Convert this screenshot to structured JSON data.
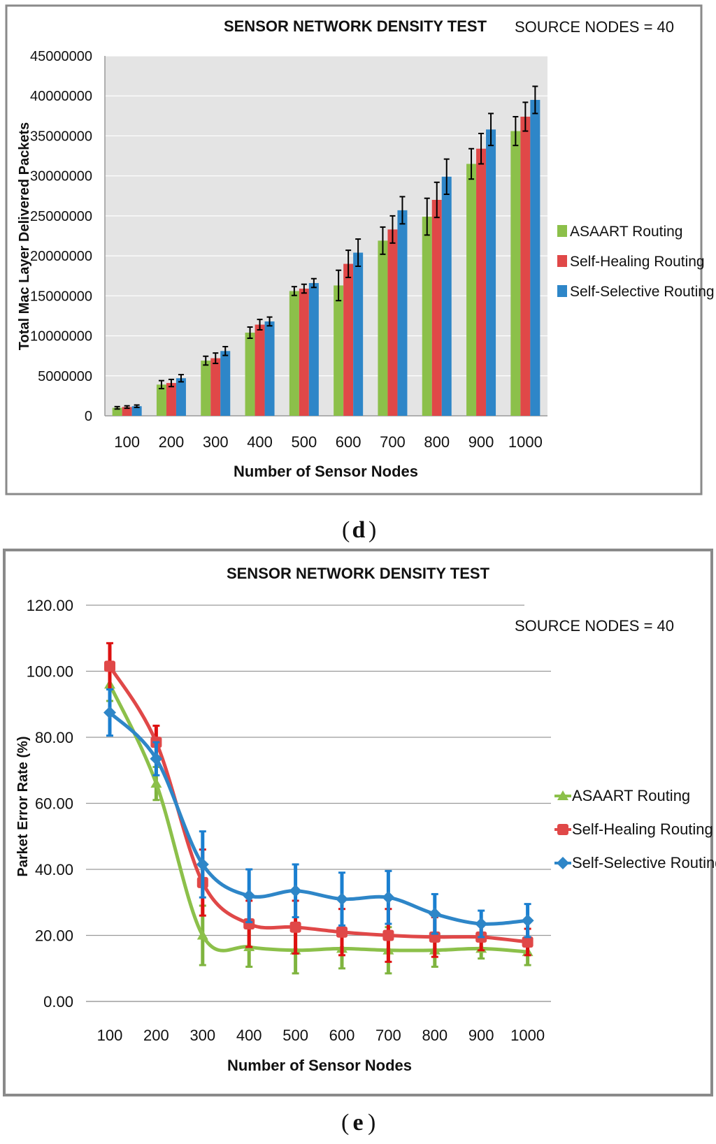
{
  "chart_data": [
    {
      "panel": "d",
      "type": "bar",
      "title": "SENSOR NETWORK DENSITY TEST",
      "annotation": "SOURCE NODES = 40",
      "xlabel": "Number of Sensor Nodes",
      "ylabel": "Total Mac Layer Delivered Packets",
      "ylim": [
        0,
        45000000
      ],
      "yticks": [
        "0",
        "5000000",
        "10000000",
        "15000000",
        "20000000",
        "25000000",
        "30000000",
        "35000000",
        "40000000",
        "45000000"
      ],
      "categories": [
        "100",
        "200",
        "300",
        "400",
        "500",
        "600",
        "700",
        "800",
        "900",
        "1000"
      ],
      "legend_position": "right",
      "series": [
        {
          "name": "ASAART Routing",
          "color": "#8CC04A",
          "values": [
            1000000,
            3900000,
            6900000,
            10400000,
            15600000,
            16300000,
            21900000,
            24900000,
            31500000,
            35600000
          ],
          "errors": [
            150000,
            500000,
            550000,
            700000,
            550000,
            1900000,
            1700000,
            2300000,
            1900000,
            1800000
          ]
        },
        {
          "name": "Self-Healing Routing",
          "color": "#E04848",
          "values": [
            1100000,
            4100000,
            7200000,
            11400000,
            15900000,
            19000000,
            23300000,
            27000000,
            33400000,
            37400000
          ],
          "errors": [
            150000,
            450000,
            650000,
            650000,
            550000,
            1700000,
            1700000,
            2200000,
            1900000,
            1800000
          ]
        },
        {
          "name": "Self-Selective Routing",
          "color": "#2E86C8",
          "values": [
            1200000,
            4700000,
            8100000,
            11800000,
            16600000,
            20400000,
            25700000,
            29900000,
            35800000,
            39500000
          ],
          "errors": [
            150000,
            450000,
            550000,
            550000,
            550000,
            1700000,
            1700000,
            2200000,
            2000000,
            1700000
          ]
        }
      ]
    },
    {
      "panel": "e",
      "type": "line",
      "title": "SENSOR NETWORK DENSITY TEST",
      "annotation": "SOURCE NODES = 40",
      "xlabel": "Number  of Sensor Nodes",
      "ylabel": "Parket Error Rate (%)",
      "ylim": [
        0,
        120
      ],
      "yticks": [
        "0.00",
        "20.00",
        "40.00",
        "60.00",
        "80.00",
        "100.00",
        "120.00"
      ],
      "categories": [
        "100",
        "200",
        "300",
        "400",
        "500",
        "600",
        "700",
        "800",
        "900",
        "1000"
      ],
      "legend_position": "right",
      "series": [
        {
          "name": "ASAART Routing",
          "color": "#8CC04A",
          "marker": "triangle",
          "values": [
            96,
            66,
            20,
            16.5,
            15.5,
            16,
            15.5,
            15.5,
            16,
            15
          ],
          "errors": [
            5,
            5,
            9,
            6,
            7,
            6,
            7,
            5,
            3,
            4
          ]
        },
        {
          "name": "Self-Healing Routing",
          "color": "#E04848",
          "marker": "square",
          "values": [
            101.5,
            78.5,
            36,
            23.5,
            22.5,
            21,
            20,
            19.5,
            19.5,
            18
          ],
          "errors": [
            7,
            5,
            10,
            7,
            8,
            7,
            8,
            6,
            4,
            4
          ]
        },
        {
          "name": "Self-Selective Routing",
          "color": "#2E86C8",
          "marker": "diamond",
          "values": [
            87.5,
            73.5,
            41.5,
            32,
            33.5,
            31,
            31.5,
            26.5,
            23.5,
            24.5
          ],
          "errors": [
            7,
            5,
            10,
            8,
            8,
            8,
            8,
            6,
            4,
            5
          ]
        }
      ]
    }
  ],
  "captions": {
    "d": "d",
    "e": "e"
  }
}
